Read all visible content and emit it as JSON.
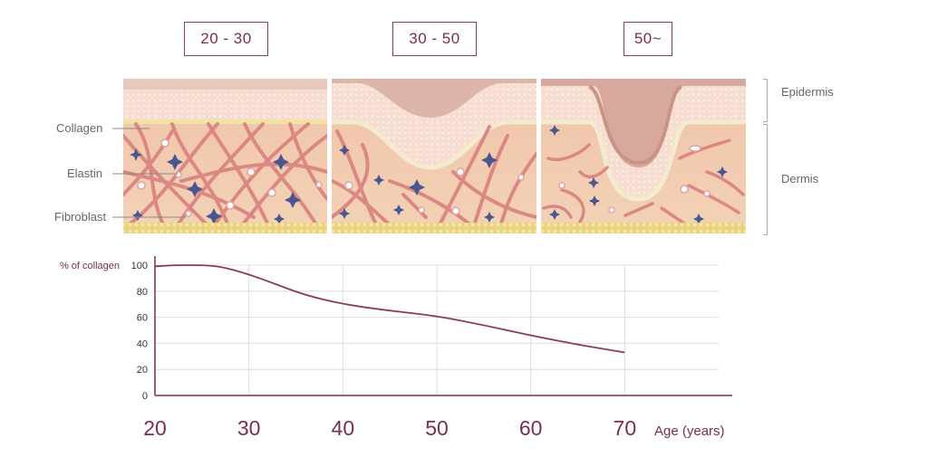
{
  "age_groups": [
    "20 - 30",
    "30 - 50",
    "50~"
  ],
  "layers": {
    "epidermis": "Epidermis",
    "dermis": "Dermis"
  },
  "components": {
    "collagen": "Collagen",
    "elastin": "Elastin",
    "fibroblast": "Fibroblast"
  },
  "colors": {
    "accent": "#7b2d4f",
    "line": "#8a3a5c",
    "grid": "#dcdcdc",
    "skin_base": "#f2c9ae",
    "fiber": "#d98080",
    "elastin_star": "#4a5690",
    "fat": "#e9d27a"
  },
  "chart_data": {
    "type": "line",
    "title": "",
    "ylabel": "% of collagen",
    "xlabel": "Age (years)",
    "ylim": [
      0,
      100
    ],
    "xlim": [
      20,
      80
    ],
    "x_ticks": [
      20,
      30,
      40,
      50,
      60,
      70
    ],
    "y_ticks": [
      0,
      20,
      40,
      60,
      80,
      100
    ],
    "grid": true,
    "series": [
      {
        "x": [
          20,
          22,
          25,
          27,
          30,
          33,
          36,
          40,
          45,
          50,
          55,
          60,
          65,
          70
        ],
        "values": [
          99,
          100,
          100,
          99,
          93,
          85,
          77,
          70,
          65,
          61,
          54,
          46,
          39,
          33
        ]
      }
    ]
  }
}
